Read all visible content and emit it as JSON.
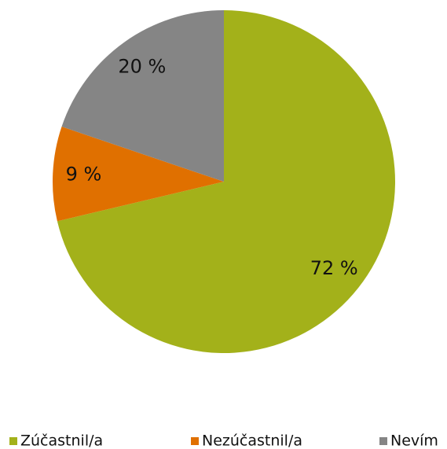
{
  "chart_data": {
    "type": "pie",
    "categories": [
      "Zúčastnil/a",
      "Nezúčastnil/a",
      "Nevím"
    ],
    "values": [
      72,
      9,
      20
    ],
    "value_labels": [
      "72 %",
      "9 %",
      "20 %"
    ],
    "colors": [
      "#a3b11a",
      "#e07000",
      "#858585"
    ],
    "legend": "bottom"
  }
}
